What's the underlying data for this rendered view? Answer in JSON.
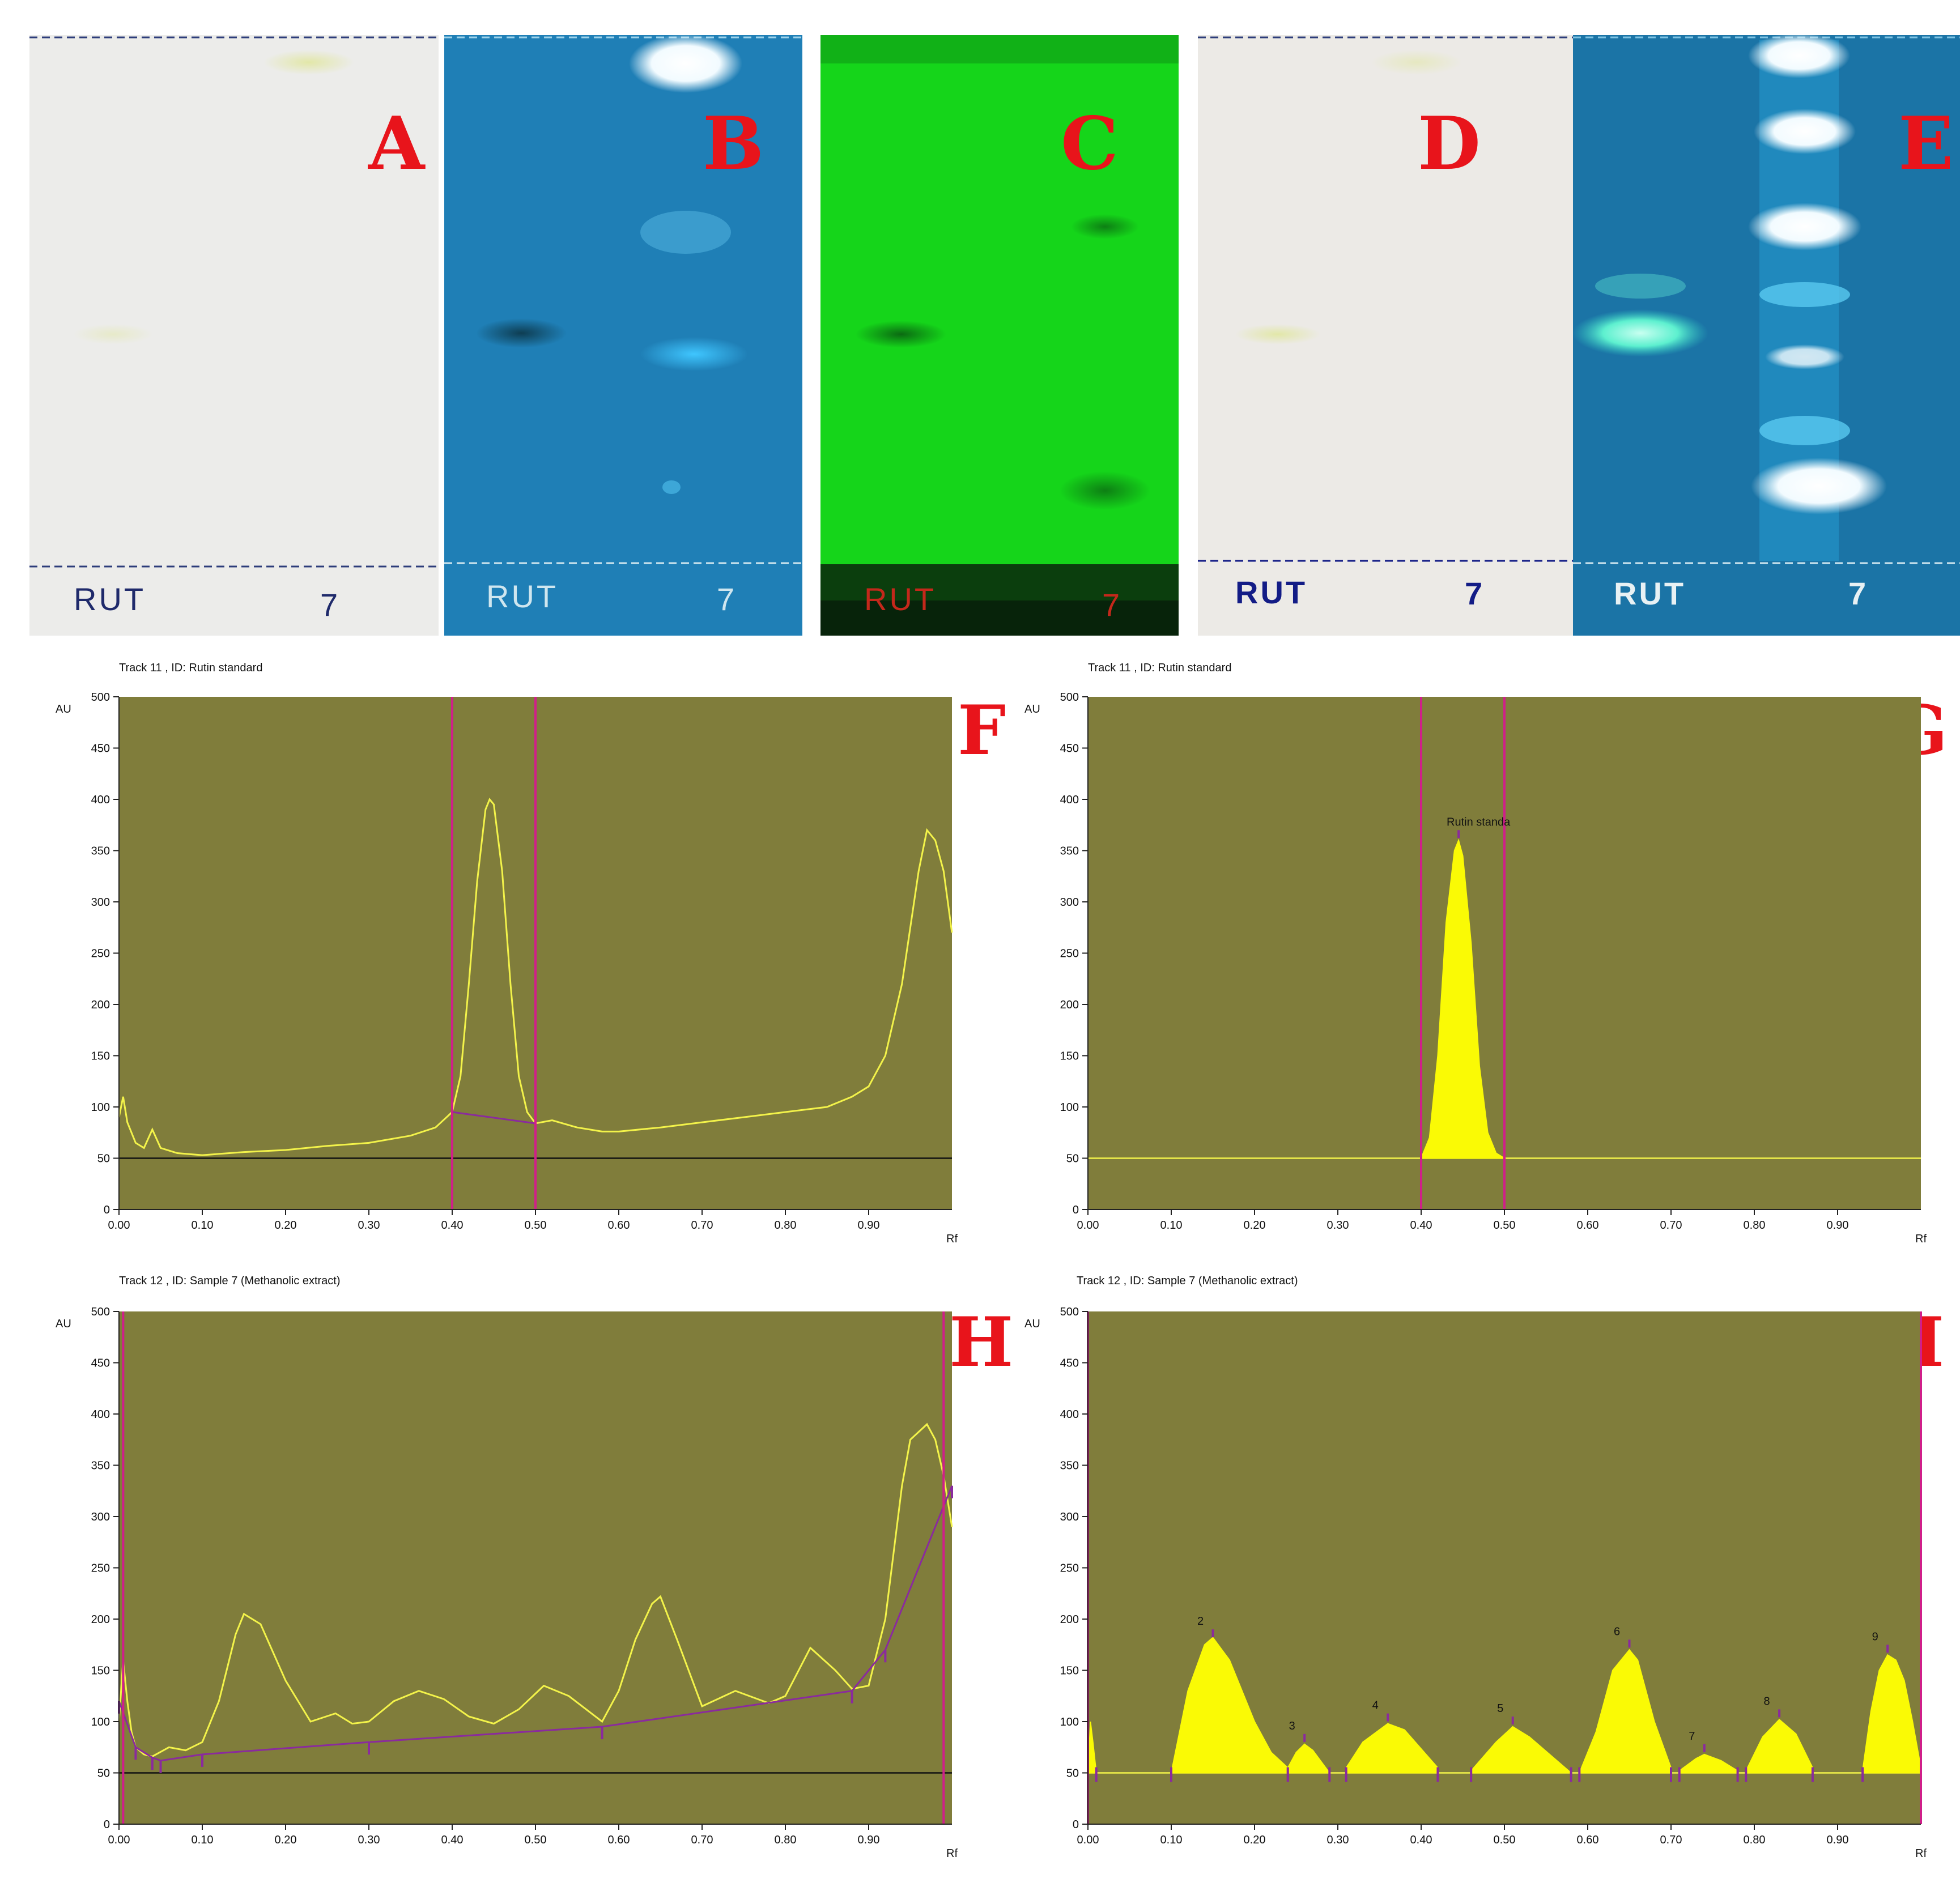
{
  "plates": [
    {
      "letter": "A",
      "lane_left": "RUT",
      "lane_right": "7",
      "bg": "#ececea",
      "label_color": "#1f2a6b"
    },
    {
      "letter": "B",
      "lane_left": "RUT",
      "lane_right": "7",
      "bg": "#1f7fb6",
      "label_color": "#cfe6ef"
    },
    {
      "letter": "C",
      "lane_left": "RUT",
      "lane_right": "7",
      "bg": "#15d51a",
      "label_color": "#c4281b"
    },
    {
      "letter": "D",
      "lane_left": "RUT",
      "lane_right": "7",
      "bg": "#eceae6",
      "label_color": "#131c86"
    },
    {
      "letter": "E",
      "lane_left": "RUT",
      "lane_right": "7",
      "bg": "#1b74a6",
      "label_color": "#e8f1f4"
    }
  ],
  "colors": {
    "plot_bg": "#807d3b",
    "trace": "#f3f34a",
    "fill": "#fafa05",
    "baseline": "#8a2a9e",
    "marker": "#d01f8a",
    "letter": "#e8141b"
  },
  "chart_data": [
    {
      "letter": "F",
      "type": "line",
      "title": "Track 11 , ID: Rutin standard",
      "ylabel": "AU",
      "xlabel": "Rf",
      "ylim": [
        0,
        500
      ],
      "xlim": [
        0,
        1
      ],
      "yticks": [
        "0",
        "50",
        "100",
        "150",
        "200",
        "250",
        "300",
        "350",
        "400",
        "450",
        "500"
      ],
      "xticks": [
        "0.00",
        "0.10",
        "0.20",
        "0.30",
        "0.40",
        "0.50",
        "0.60",
        "0.70",
        "0.80",
        "0.90"
      ],
      "grid": false,
      "markers": [
        0.4,
        0.5
      ],
      "reference_line": 50,
      "baseline_segment": [
        [
          0.4,
          95
        ],
        [
          0.5,
          84
        ]
      ],
      "series": [
        {
          "x": [
            0,
            0.005,
            0.01,
            0.02,
            0.03,
            0.04,
            0.05,
            0.07,
            0.1,
            0.15,
            0.2,
            0.25,
            0.3,
            0.35,
            0.38,
            0.4,
            0.41,
            0.42,
            0.43,
            0.44,
            0.445,
            0.45,
            0.46,
            0.47,
            0.48,
            0.49,
            0.5,
            0.52,
            0.55,
            0.58,
            0.6,
            0.65,
            0.7,
            0.75,
            0.8,
            0.85,
            0.88,
            0.9,
            0.92,
            0.94,
            0.96,
            0.97,
            0.98,
            0.99,
            1.0
          ],
          "y": [
            90,
            110,
            85,
            65,
            60,
            78,
            60,
            55,
            53,
            56,
            58,
            62,
            65,
            72,
            80,
            95,
            130,
            220,
            320,
            390,
            400,
            395,
            330,
            220,
            130,
            95,
            84,
            87,
            80,
            76,
            76,
            80,
            85,
            90,
            95,
            100,
            110,
            120,
            150,
            220,
            330,
            370,
            360,
            330,
            270
          ]
        }
      ]
    },
    {
      "letter": "G",
      "type": "area",
      "title": "Track 11 , ID: Rutin standard",
      "ylabel": "AU",
      "xlabel": "Rf",
      "ylim": [
        0,
        500
      ],
      "xlim": [
        0,
        1
      ],
      "yticks": [
        "0",
        "50",
        "100",
        "150",
        "200",
        "250",
        "300",
        "350",
        "400",
        "450",
        "500"
      ],
      "xticks": [
        "0.00",
        "0.10",
        "0.20",
        "0.30",
        "0.40",
        "0.50",
        "0.60",
        "0.70",
        "0.80",
        "0.90"
      ],
      "grid": false,
      "markers": [
        0.4,
        0.5
      ],
      "reference_line": 50,
      "peaks": [
        {
          "label": "Rutin standa",
          "x": 0.445,
          "y": 360
        }
      ],
      "series": [
        {
          "x": [
            0.4,
            0.41,
            0.42,
            0.43,
            0.44,
            0.445,
            0.45,
            0.46,
            0.47,
            0.48,
            0.49,
            0.5
          ],
          "y": [
            50,
            70,
            150,
            280,
            350,
            360,
            345,
            260,
            140,
            75,
            55,
            50
          ]
        }
      ]
    },
    {
      "letter": "H",
      "type": "line",
      "title": "Track 12 , ID: Sample 7 (Methanolic extract)",
      "ylabel": "AU",
      "xlabel": "Rf",
      "ylim": [
        0,
        500
      ],
      "xlim": [
        0,
        1
      ],
      "yticks": [
        "0",
        "50",
        "100",
        "150",
        "200",
        "250",
        "300",
        "350",
        "400",
        "450",
        "500"
      ],
      "xticks": [
        "0.00",
        "0.10",
        "0.20",
        "0.30",
        "0.40",
        "0.50",
        "0.60",
        "0.70",
        "0.80",
        "0.90"
      ],
      "grid": false,
      "markers": [
        0.005,
        0.99
      ],
      "reference_line": 50,
      "baseline_segment": [
        [
          0.0,
          120
        ],
        [
          0.02,
          75
        ],
        [
          0.04,
          65
        ],
        [
          0.05,
          62
        ],
        [
          0.1,
          68
        ],
        [
          0.3,
          80
        ],
        [
          0.58,
          95
        ],
        [
          0.88,
          130
        ],
        [
          0.92,
          170
        ],
        [
          1.0,
          330
        ]
      ],
      "series": [
        {
          "x": [
            0,
            0.005,
            0.01,
            0.015,
            0.02,
            0.03,
            0.04,
            0.06,
            0.08,
            0.1,
            0.12,
            0.14,
            0.15,
            0.17,
            0.2,
            0.23,
            0.26,
            0.28,
            0.3,
            0.33,
            0.36,
            0.39,
            0.42,
            0.45,
            0.48,
            0.51,
            0.54,
            0.58,
            0.6,
            0.62,
            0.64,
            0.65,
            0.67,
            0.7,
            0.74,
            0.78,
            0.8,
            0.83,
            0.86,
            0.88,
            0.9,
            0.92,
            0.94,
            0.95,
            0.97,
            0.98,
            0.99,
            1.0
          ],
          "y": [
            100,
            160,
            120,
            90,
            75,
            68,
            66,
            75,
            72,
            80,
            120,
            185,
            205,
            195,
            140,
            100,
            108,
            98,
            100,
            120,
            130,
            122,
            105,
            98,
            112,
            135,
            125,
            100,
            130,
            180,
            215,
            222,
            180,
            115,
            130,
            118,
            125,
            172,
            150,
            132,
            135,
            200,
            330,
            375,
            390,
            375,
            340,
            290
          ]
        }
      ]
    },
    {
      "letter": "I",
      "type": "area",
      "title": "Track 12 , ID: Sample 7 (Methanolic extract)",
      "ylabel": "AU",
      "xlabel": "Rf",
      "ylim": [
        0,
        500
      ],
      "xlim": [
        0,
        1
      ],
      "yticks": [
        "0",
        "50",
        "100",
        "150",
        "200",
        "250",
        "300",
        "350",
        "400",
        "450",
        "500"
      ],
      "xticks": [
        "0.00",
        "0.10",
        "0.20",
        "0.30",
        "0.40",
        "0.50",
        "0.60",
        "0.70",
        "0.80",
        "0.90"
      ],
      "grid": false,
      "markers": [
        0.0,
        1.0
      ],
      "reference_line": 50,
      "peaks": [
        {
          "label": "2",
          "x": 0.15,
          "y": 180
        },
        {
          "label": "3",
          "x": 0.26,
          "y": 78
        },
        {
          "label": "4",
          "x": 0.36,
          "y": 98
        },
        {
          "label": "5",
          "x": 0.51,
          "y": 95
        },
        {
          "label": "6",
          "x": 0.65,
          "y": 170
        },
        {
          "label": "7",
          "x": 0.74,
          "y": 68
        },
        {
          "label": "8",
          "x": 0.83,
          "y": 102
        },
        {
          "label": "9",
          "x": 0.96,
          "y": 165
        }
      ],
      "series": [
        {
          "x": [
            0.0,
            0.003,
            0.006,
            0.01
          ],
          "y": [
            50,
            100,
            80,
            50
          ]
        },
        {
          "x": [
            0.1,
            0.12,
            0.14,
            0.15,
            0.17,
            0.2,
            0.22,
            0.24
          ],
          "y": [
            50,
            130,
            175,
            182,
            160,
            100,
            70,
            55
          ]
        },
        {
          "x": [
            0.24,
            0.25,
            0.26,
            0.27,
            0.29
          ],
          "y": [
            55,
            70,
            78,
            72,
            50
          ]
        },
        {
          "x": [
            0.31,
            0.33,
            0.36,
            0.38,
            0.42
          ],
          "y": [
            55,
            80,
            98,
            92,
            55
          ]
        },
        {
          "x": [
            0.46,
            0.49,
            0.51,
            0.53,
            0.58
          ],
          "y": [
            52,
            80,
            95,
            85,
            50
          ]
        },
        {
          "x": [
            0.59,
            0.61,
            0.63,
            0.65,
            0.66,
            0.68,
            0.7
          ],
          "y": [
            50,
            90,
            150,
            170,
            160,
            100,
            55
          ]
        },
        {
          "x": [
            0.71,
            0.73,
            0.74,
            0.76,
            0.78
          ],
          "y": [
            52,
            64,
            68,
            62,
            52
          ]
        },
        {
          "x": [
            0.79,
            0.81,
            0.83,
            0.85,
            0.87
          ],
          "y": [
            52,
            85,
            102,
            88,
            55
          ]
        },
        {
          "x": [
            0.93,
            0.94,
            0.95,
            0.96,
            0.97,
            0.98,
            0.99,
            1.0
          ],
          "y": [
            52,
            110,
            150,
            165,
            160,
            140,
            100,
            55
          ]
        }
      ]
    }
  ]
}
